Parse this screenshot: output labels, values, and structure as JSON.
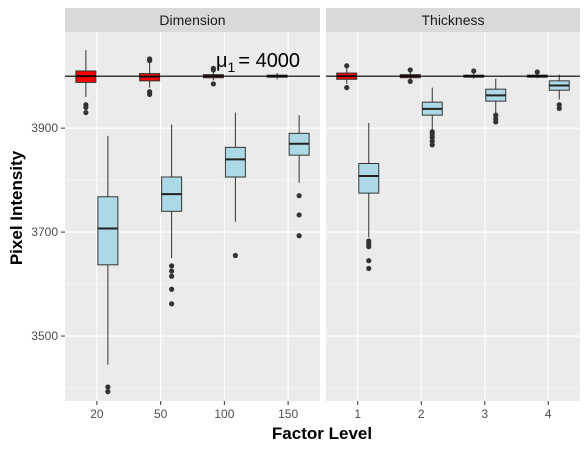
{
  "chart_data": {
    "type": "boxplot",
    "xlabel": "Factor Level",
    "ylabel": "Pixel Intensity",
    "ylim": [
      3375,
      4085
    ],
    "yticks": [
      3500,
      3700,
      3900
    ],
    "reference_line": {
      "y": 4000,
      "label_symbol": "μ",
      "label_subscript": "1",
      "label_value": "= 4000"
    },
    "colors": {
      "baseline_fill": "#ff0000",
      "treatment_fill": "#add8e6",
      "panel_bg": "#ebebeb",
      "strip_bg": "#d9d9d9",
      "grid": "#ffffff"
    },
    "facets": [
      {
        "name": "Dimension",
        "categories": [
          "20",
          "50",
          "100",
          "150"
        ],
        "baseline": [
          {
            "min": 3960,
            "q1": 3988,
            "median": 4000,
            "q3": 4010,
            "max": 4050,
            "outliers": [
              3945,
              3940,
              3930
            ]
          },
          {
            "min": 3978,
            "q1": 3991,
            "median": 3999,
            "q3": 4005,
            "max": 4027,
            "outliers": [
              4033,
              4030,
              3970,
              3965
            ]
          },
          {
            "min": 3992,
            "q1": 3997,
            "median": 4000,
            "q3": 4003,
            "max": 4010,
            "outliers": [
              4015,
              4012,
              3985
            ]
          },
          {
            "min": 3994,
            "q1": 3998,
            "median": 4000,
            "q3": 4002,
            "max": 4006,
            "outliers": []
          }
        ],
        "treatment": [
          {
            "min": 3445,
            "q1": 3637,
            "median": 3707,
            "q3": 3768,
            "max": 3885,
            "outliers": [
              3402,
              3393
            ]
          },
          {
            "min": 3650,
            "q1": 3740,
            "median": 3773,
            "q3": 3806,
            "max": 3907,
            "outliers": [
              3635,
              3625,
              3615,
              3590,
              3562
            ]
          },
          {
            "min": 3720,
            "q1": 3806,
            "median": 3840,
            "q3": 3863,
            "max": 3930,
            "outliers": [
              3655
            ]
          },
          {
            "min": 3795,
            "q1": 3848,
            "median": 3870,
            "q3": 3890,
            "max": 3925,
            "outliers": [
              3770,
              3733,
              3693
            ]
          }
        ]
      },
      {
        "name": "Thickness",
        "categories": [
          "1",
          "2",
          "3",
          "4"
        ],
        "baseline": [
          {
            "min": 3985,
            "q1": 3994,
            "median": 4000,
            "q3": 4006,
            "max": 4015,
            "outliers": [
              4020,
              3978
            ]
          },
          {
            "min": 3992,
            "q1": 3997,
            "median": 4000,
            "q3": 4003,
            "max": 4008,
            "outliers": [
              4012,
              3990
            ]
          },
          {
            "min": 3995,
            "q1": 3998,
            "median": 4000,
            "q3": 4002,
            "max": 4005,
            "outliers": [
              4010
            ]
          },
          {
            "min": 3996,
            "q1": 3998,
            "median": 4000,
            "q3": 4002,
            "max": 4005,
            "outliers": [
              4008
            ]
          }
        ],
        "treatment": [
          {
            "min": 3690,
            "q1": 3775,
            "median": 3808,
            "q3": 3832,
            "max": 3910,
            "outliers": [
              3683,
              3678,
              3672,
              3645,
              3630
            ]
          },
          {
            "min": 3885,
            "q1": 3925,
            "median": 3937,
            "q3": 3950,
            "max": 3978,
            "outliers": [
              3893,
              3888,
              3882,
              3875,
              3868
            ]
          },
          {
            "min": 3928,
            "q1": 3952,
            "median": 3963,
            "q3": 3975,
            "max": 3995,
            "outliers": [
              3925,
              3918,
              3912
            ]
          },
          {
            "min": 3955,
            "q1": 3973,
            "median": 3982,
            "q3": 3991,
            "max": 4003,
            "outliers": [
              3945,
              3938
            ]
          }
        ]
      }
    ]
  }
}
